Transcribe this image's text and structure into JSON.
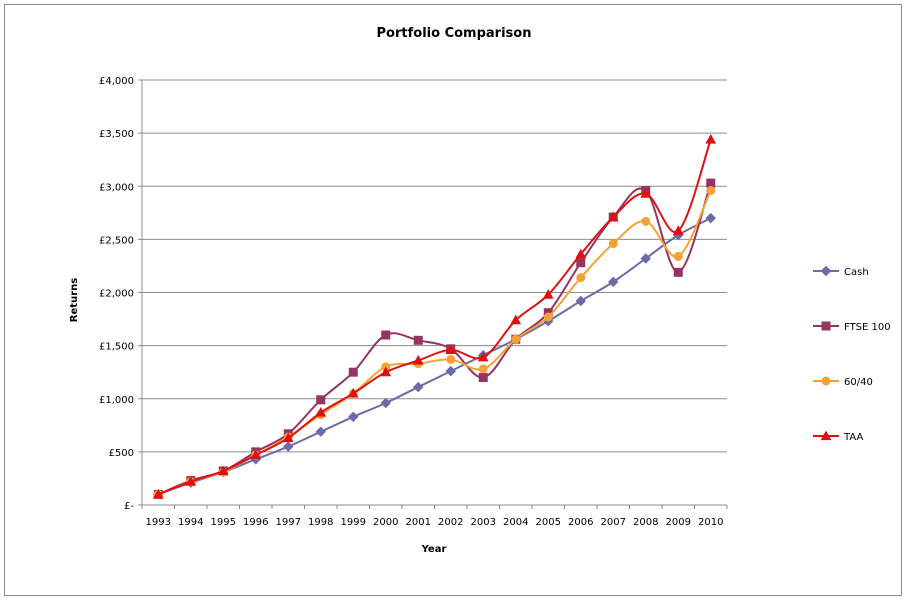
{
  "chart_data": {
    "type": "line",
    "title": "Portfolio Comparison",
    "xlabel": "Year",
    "ylabel": "Returns",
    "categories": [
      "1993",
      "1994",
      "1995",
      "1996",
      "1997",
      "1998",
      "1999",
      "2000",
      "2001",
      "2002",
      "2003",
      "2004",
      "2005",
      "2006",
      "2007",
      "2008",
      "2009",
      "2010"
    ],
    "ylim": [
      0,
      4000
    ],
    "yticks": [
      0,
      500,
      1000,
      1500,
      2000,
      2500,
      3000,
      3500,
      4000
    ],
    "ytick_labels": [
      "£-",
      "£500",
      "£1,000",
      "£1,500",
      "£2,000",
      "£2,500",
      "£3,000",
      "£3,500",
      "£4,000"
    ],
    "grid": "horizontal",
    "legend_position": "right",
    "series": [
      {
        "name": "Cash",
        "color": "#6b6ba8",
        "marker": "diamond",
        "values": [
          100,
          210,
          310,
          430,
          550,
          690,
          830,
          960,
          1110,
          1260,
          1410,
          1560,
          1730,
          1920,
          2100,
          2320,
          2540,
          2700
        ]
      },
      {
        "name": "FTSE 100",
        "color": "#953462",
        "marker": "square",
        "values": [
          100,
          230,
          320,
          500,
          670,
          990,
          1250,
          1600,
          1550,
          1470,
          1200,
          1560,
          1810,
          2280,
          2710,
          2960,
          2190,
          3030
        ]
      },
      {
        "name": "60/40",
        "color": "#f4a236",
        "marker": "circle",
        "values": [
          100,
          220,
          310,
          470,
          640,
          850,
          1050,
          1300,
          1330,
          1370,
          1280,
          1560,
          1770,
          2140,
          2460,
          2670,
          2340,
          2960
        ]
      },
      {
        "name": "TAA",
        "color": "#e01010",
        "marker": "triangle",
        "values": [
          100,
          220,
          320,
          470,
          630,
          870,
          1050,
          1250,
          1360,
          1460,
          1390,
          1740,
          1980,
          2360,
          2710,
          2930,
          2580,
          3440
        ]
      }
    ]
  }
}
